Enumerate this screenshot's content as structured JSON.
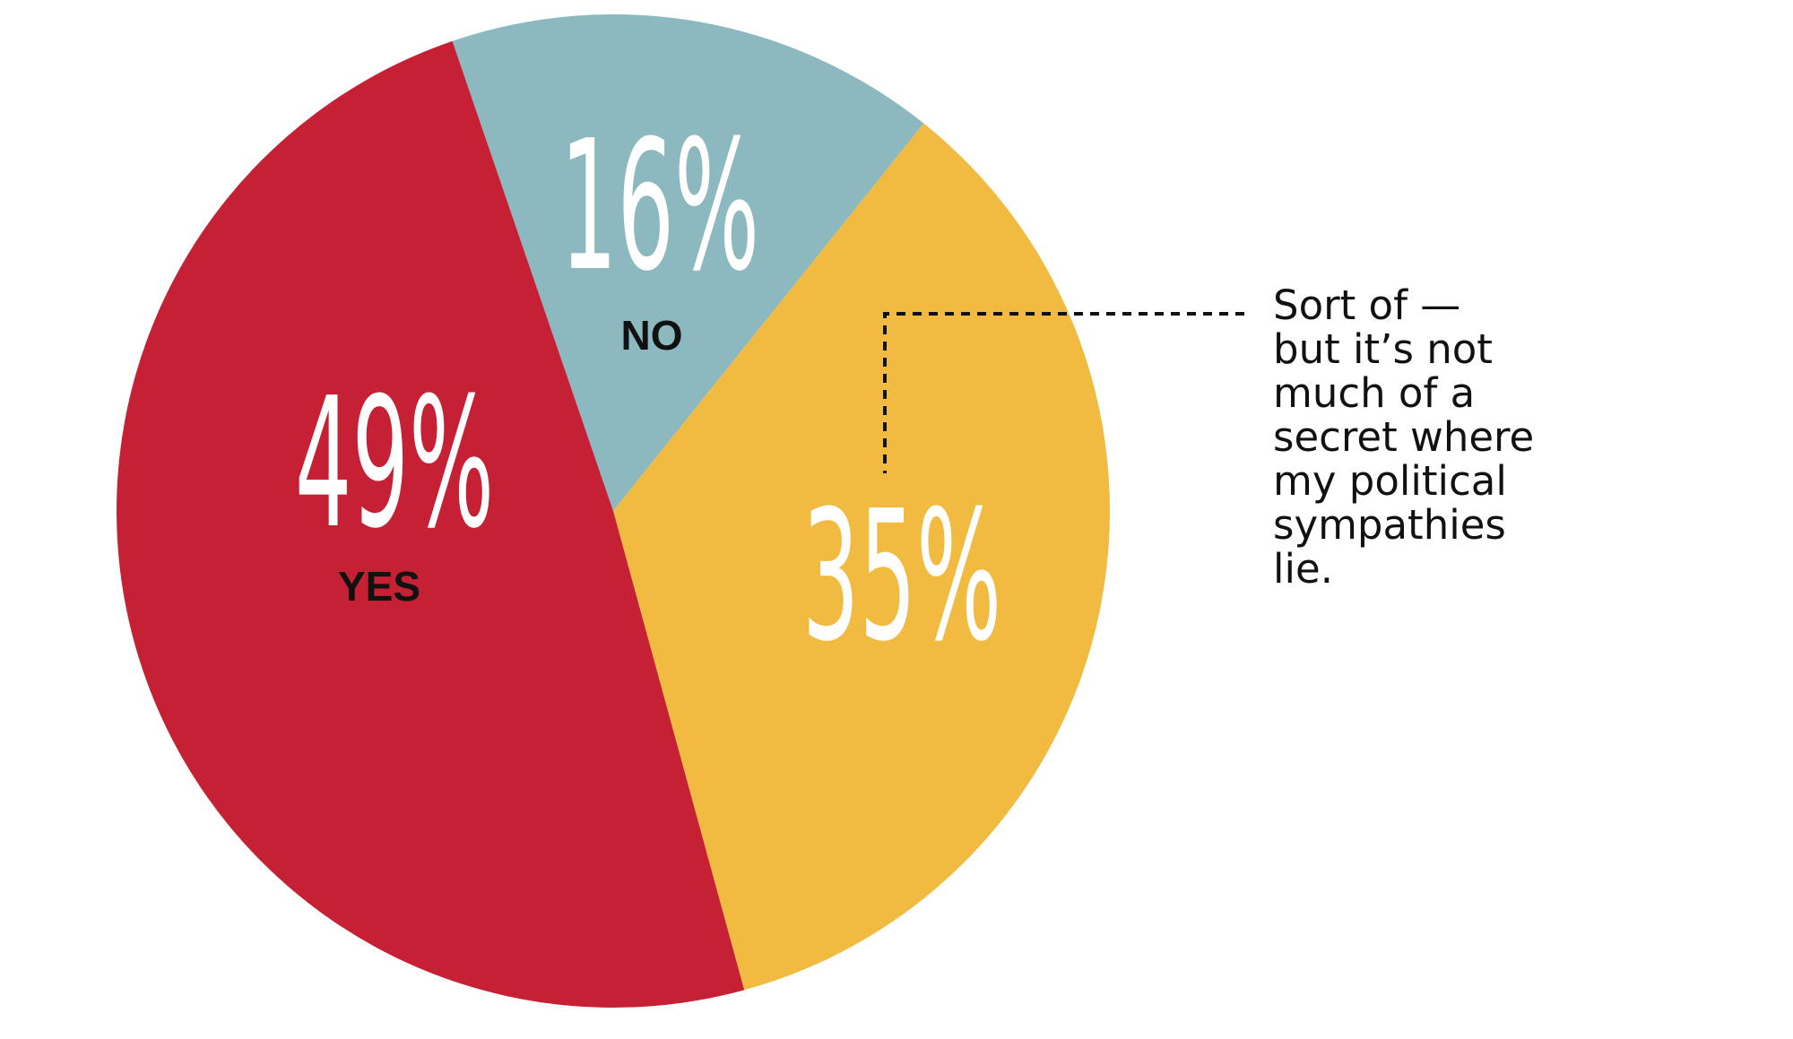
{
  "chart_data": {
    "type": "pie",
    "categories": [
      "NO",
      "Sort of —\nbut it’s not\nmuch of a\nsecret where\nmy political\nsympathies\nlie.",
      "YES"
    ],
    "values": [
      16,
      35,
      49
    ],
    "value_labels": [
      "16%",
      "35%",
      "49%"
    ],
    "colors": [
      "#8cb8bf",
      "#f1bb41",
      "#c62034"
    ]
  }
}
